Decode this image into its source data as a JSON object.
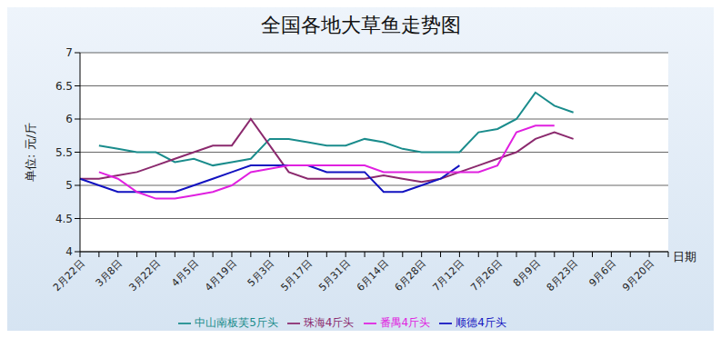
{
  "chart_data": {
    "type": "line",
    "title": "全国各地大草鱼走势图",
    "y_label": "单位: 元/斤",
    "x_label": "日期",
    "categories": [
      "2月22日",
      null,
      "3月8日",
      null,
      "3月22日",
      null,
      "4月5日",
      null,
      "4月19日",
      null,
      "5月3日",
      null,
      "5月17日",
      null,
      "5月31日",
      null,
      "6月14日",
      null,
      "6月28日",
      null,
      "7月12日",
      null,
      "7月26日",
      null,
      "8月9日",
      null,
      "8月23日",
      null,
      "9月6日",
      null,
      "9月20日",
      null
    ],
    "series": [
      {
        "name": "中山南板芙5斤头",
        "color": "#1a8c8c",
        "values": [
          null,
          5.6,
          5.55,
          5.5,
          5.5,
          5.35,
          5.4,
          5.3,
          5.35,
          5.4,
          5.7,
          5.7,
          5.65,
          5.6,
          5.6,
          5.7,
          5.65,
          5.55,
          5.5,
          5.5,
          5.5,
          5.8,
          5.85,
          6.0,
          6.4,
          6.2,
          6.1,
          null,
          null,
          null,
          null,
          null
        ]
      },
      {
        "name": "珠海4斤头",
        "color": "#8b2a6e",
        "values": [
          5.1,
          5.1,
          5.15,
          5.2,
          5.3,
          5.4,
          5.5,
          5.6,
          5.6,
          6.0,
          5.6,
          5.2,
          5.1,
          5.1,
          5.1,
          5.1,
          5.15,
          5.1,
          5.05,
          5.1,
          5.2,
          5.3,
          5.4,
          5.5,
          5.7,
          5.8,
          5.7,
          null,
          null,
          null,
          null,
          null
        ]
      },
      {
        "name": "顺德4斤头",
        "color": "#1212c0",
        "values": [
          5.1,
          5.0,
          4.9,
          4.9,
          4.9,
          4.9,
          5.0,
          5.1,
          5.2,
          5.3,
          5.3,
          5.3,
          5.3,
          5.2,
          5.2,
          5.2,
          4.9,
          4.9,
          5.0,
          5.1,
          5.3,
          null,
          null,
          null,
          null,
          null,
          null,
          null,
          null,
          null,
          null,
          null
        ]
      },
      {
        "name": "番禺4斤头",
        "color": "#e020e0",
        "values": [
          null,
          5.2,
          5.1,
          4.9,
          4.8,
          4.8,
          4.85,
          4.9,
          5.0,
          5.2,
          5.25,
          5.3,
          5.3,
          5.3,
          5.3,
          5.3,
          5.2,
          5.2,
          5.2,
          5.2,
          5.2,
          5.2,
          5.3,
          5.8,
          5.9,
          5.9,
          null,
          null,
          null,
          null,
          null,
          null
        ]
      }
    ],
    "ylim": [
      4,
      7
    ],
    "yticks": [
      4,
      4.5,
      5,
      5.5,
      6,
      6.5,
      7
    ],
    "grid": true,
    "legend": "bottom"
  }
}
